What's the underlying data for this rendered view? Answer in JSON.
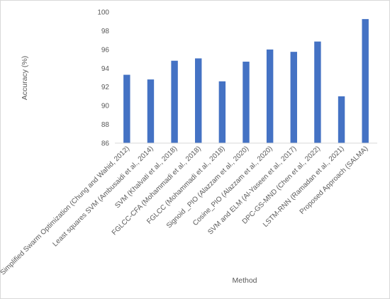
{
  "chart_data": {
    "type": "bar",
    "xlabel": "Method",
    "ylabel": "Accuracy (%)",
    "ylim": [
      86,
      100
    ],
    "yticks": [
      86,
      88,
      90,
      92,
      94,
      96,
      98,
      100
    ],
    "grid": false,
    "bar_color": "#4472C4",
    "categories": [
      "Simplified Swarm Optimization (Chung and Wahid, 2012)",
      "Least squares SVM (Ambusaidi et al., 2014)",
      "SVM (Khalvati et al., 2018)",
      "FGLCC-CFA (Mohammadi et al., 2018)",
      "FGLCC (Mohammadi et al., 2018)",
      "Signoid _PIO (Alazzam et al., 2020)",
      "Cosine_PIO (Alazzam et al., 2020)",
      "SVM and ELM (Al-Yaseen et al., 2017)",
      "DPC-GS-MND (Chen et al., 2022)",
      "LSTM-RNN (Ramadan et al., 2021)",
      "Proposed Approach (SALMA)"
    ],
    "values": [
      93.3,
      92.8,
      94.8,
      95.05,
      92.6,
      94.7,
      96.0,
      95.75,
      96.85,
      91.0,
      99.25
    ]
  }
}
